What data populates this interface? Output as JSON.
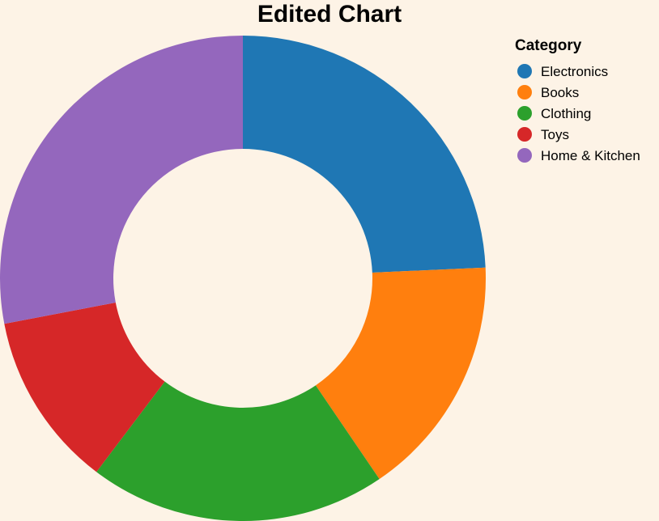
{
  "chart_data": {
    "type": "pie",
    "donut": true,
    "title": "Edited Chart",
    "legend": {
      "title": "Category",
      "placement": "top-right"
    },
    "categories": [
      "Electronics",
      "Books",
      "Clothing",
      "Toys",
      "Home & Kitchen"
    ],
    "values": [
      24.3,
      16.2,
      19.8,
      11.7,
      28.0
    ],
    "colors": [
      "#1f77b4",
      "#ff7f0e",
      "#2ca02c",
      "#d62728",
      "#9467bd"
    ]
  }
}
